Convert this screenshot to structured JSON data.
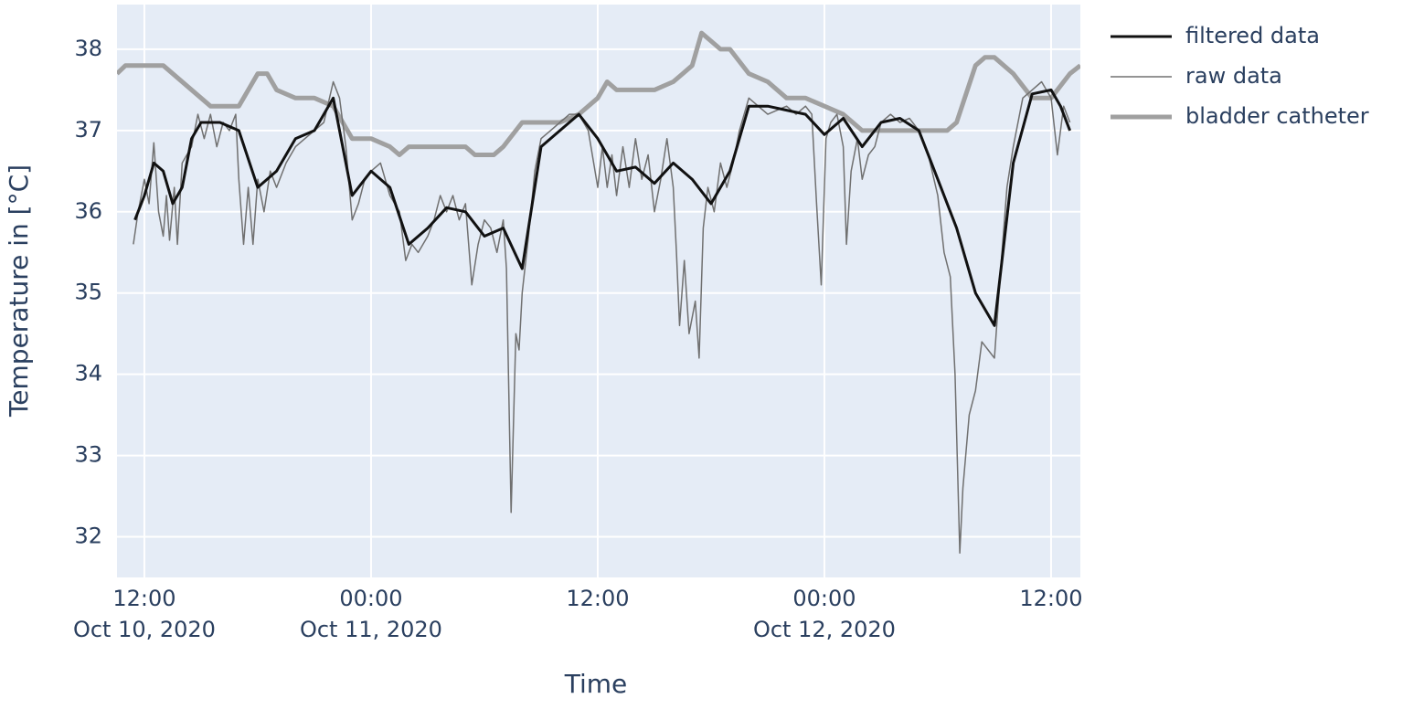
{
  "chart_data": {
    "type": "line",
    "xlabel": "Time",
    "ylabel": "Temperature in [°C]",
    "xlim": [
      "2020-10-10 10:33",
      "2020-10-12 13:33"
    ],
    "xticks": [
      {
        "value": "2020-10-10 12:00",
        "label": [
          "12:00",
          "Oct 10, 2020"
        ]
      },
      {
        "value": "2020-10-11 00:00",
        "label": [
          "00:00",
          "Oct 11, 2020"
        ]
      },
      {
        "value": "2020-10-11 12:00",
        "label": [
          "12:00"
        ]
      },
      {
        "value": "2020-10-12 00:00",
        "label": [
          "00:00",
          "Oct 12, 2020"
        ]
      },
      {
        "value": "2020-10-12 12:00",
        "label": [
          "12:00"
        ]
      }
    ],
    "ylim": [
      31.5,
      38.55
    ],
    "yticks": [
      32,
      33,
      34,
      35,
      36,
      37,
      38
    ],
    "grid": true,
    "legend": "outside-right",
    "series": [
      {
        "name": "filtered data",
        "color": "#111111",
        "width": 3,
        "x": [
          "2020-10-10 11:30",
          "2020-10-10 12:00",
          "2020-10-10 12:30",
          "2020-10-10 13:00",
          "2020-10-10 13:30",
          "2020-10-10 14:00",
          "2020-10-10 14:30",
          "2020-10-10 15:00",
          "2020-10-10 16:00",
          "2020-10-10 17:00",
          "2020-10-10 18:00",
          "2020-10-10 19:00",
          "2020-10-10 20:00",
          "2020-10-10 21:00",
          "2020-10-10 22:00",
          "2020-10-10 23:00",
          "2020-10-11 00:00",
          "2020-10-11 01:00",
          "2020-10-11 02:00",
          "2020-10-11 03:00",
          "2020-10-11 04:00",
          "2020-10-11 05:00",
          "2020-10-11 06:00",
          "2020-10-11 07:00",
          "2020-10-11 08:00",
          "2020-10-11 09:00",
          "2020-10-11 10:00",
          "2020-10-11 11:00",
          "2020-10-11 12:00",
          "2020-10-11 13:00",
          "2020-10-11 14:00",
          "2020-10-11 15:00",
          "2020-10-11 16:00",
          "2020-10-11 17:00",
          "2020-10-11 18:00",
          "2020-10-11 19:00",
          "2020-10-11 20:00",
          "2020-10-11 21:00",
          "2020-10-11 22:00",
          "2020-10-11 23:00",
          "2020-10-12 00:00",
          "2020-10-12 01:00",
          "2020-10-12 02:00",
          "2020-10-12 03:00",
          "2020-10-12 04:00",
          "2020-10-12 05:00",
          "2020-10-12 06:00",
          "2020-10-12 07:00",
          "2020-10-12 08:00",
          "2020-10-12 09:00",
          "2020-10-12 10:00",
          "2020-10-12 11:00",
          "2020-10-12 12:00",
          "2020-10-12 12:30",
          "2020-10-12 13:00"
        ],
        "values": [
          35.9,
          36.2,
          36.6,
          36.5,
          36.1,
          36.3,
          36.9,
          37.1,
          37.1,
          37.0,
          36.3,
          36.5,
          36.9,
          37.0,
          37.4,
          36.2,
          36.5,
          36.3,
          35.6,
          35.8,
          36.05,
          36.0,
          35.7,
          35.8,
          35.3,
          36.8,
          37.0,
          37.2,
          36.9,
          36.5,
          36.55,
          36.35,
          36.6,
          36.4,
          36.1,
          36.5,
          37.3,
          37.3,
          37.25,
          37.2,
          36.95,
          37.15,
          36.8,
          37.1,
          37.15,
          37.0,
          36.4,
          35.8,
          35.0,
          34.6,
          36.6,
          37.45,
          37.5,
          37.3,
          37.0
        ]
      },
      {
        "name": "raw data",
        "color": "#707070",
        "width": 1.5,
        "x": [
          "2020-10-10 11:25",
          "2020-10-10 11:40",
          "2020-10-10 12:00",
          "2020-10-10 12:15",
          "2020-10-10 12:30",
          "2020-10-10 12:45",
          "2020-10-10 13:00",
          "2020-10-10 13:10",
          "2020-10-10 13:20",
          "2020-10-10 13:35",
          "2020-10-10 13:45",
          "2020-10-10 14:00",
          "2020-10-10 14:30",
          "2020-10-10 14:50",
          "2020-10-10 15:10",
          "2020-10-10 15:30",
          "2020-10-10 15:50",
          "2020-10-10 16:10",
          "2020-10-10 16:30",
          "2020-10-10 16:50",
          "2020-10-10 17:00",
          "2020-10-10 17:15",
          "2020-10-10 17:30",
          "2020-10-10 17:45",
          "2020-10-10 18:00",
          "2020-10-10 18:20",
          "2020-10-10 18:40",
          "2020-10-10 19:00",
          "2020-10-10 19:30",
          "2020-10-10 20:00",
          "2020-10-10 20:30",
          "2020-10-10 21:00",
          "2020-10-10 21:30",
          "2020-10-10 22:00",
          "2020-10-10 22:20",
          "2020-10-10 22:40",
          "2020-10-10 23:00",
          "2020-10-10 23:20",
          "2020-10-10 23:40",
          "2020-10-11 00:00",
          "2020-10-11 00:30",
          "2020-10-11 01:00",
          "2020-10-11 01:30",
          "2020-10-11 01:50",
          "2020-10-11 02:10",
          "2020-10-11 02:30",
          "2020-10-11 03:00",
          "2020-10-11 03:20",
          "2020-10-11 03:40",
          "2020-10-11 04:00",
          "2020-10-11 04:20",
          "2020-10-11 04:40",
          "2020-10-11 05:00",
          "2020-10-11 05:20",
          "2020-10-11 05:40",
          "2020-10-11 06:00",
          "2020-10-11 06:20",
          "2020-10-11 06:40",
          "2020-10-11 07:00",
          "2020-10-11 07:10",
          "2020-10-11 07:25",
          "2020-10-11 07:40",
          "2020-10-11 07:50",
          "2020-10-11 08:00",
          "2020-10-11 08:20",
          "2020-10-11 08:40",
          "2020-10-11 09:00",
          "2020-10-11 09:30",
          "2020-10-11 10:00",
          "2020-10-11 10:30",
          "2020-10-11 11:00",
          "2020-10-11 11:30",
          "2020-10-11 12:00",
          "2020-10-11 12:15",
          "2020-10-11 12:30",
          "2020-10-11 12:45",
          "2020-10-11 13:00",
          "2020-10-11 13:20",
          "2020-10-11 13:40",
          "2020-10-11 14:00",
          "2020-10-11 14:20",
          "2020-10-11 14:40",
          "2020-10-11 15:00",
          "2020-10-11 15:20",
          "2020-10-11 15:40",
          "2020-10-11 16:00",
          "2020-10-11 16:10",
          "2020-10-11 16:20",
          "2020-10-11 16:35",
          "2020-10-11 16:50",
          "2020-10-11 17:10",
          "2020-10-11 17:22",
          "2020-10-11 17:35",
          "2020-10-11 17:50",
          "2020-10-11 18:10",
          "2020-10-11 18:30",
          "2020-10-11 18:50",
          "2020-10-11 19:10",
          "2020-10-11 19:30",
          "2020-10-11 20:00",
          "2020-10-11 20:30",
          "2020-10-11 21:00",
          "2020-10-11 21:30",
          "2020-10-11 22:00",
          "2020-10-11 22:30",
          "2020-10-11 23:00",
          "2020-10-11 23:20",
          "2020-10-11 23:35",
          "2020-10-11 23:50",
          "2020-10-12 00:05",
          "2020-10-12 00:20",
          "2020-10-12 00:40",
          "2020-10-12 01:00",
          "2020-10-12 01:10",
          "2020-10-12 01:25",
          "2020-10-12 01:45",
          "2020-10-12 02:00",
          "2020-10-12 02:20",
          "2020-10-12 02:40",
          "2020-10-12 03:00",
          "2020-10-12 03:30",
          "2020-10-12 04:00",
          "2020-10-12 04:30",
          "2020-10-12 05:00",
          "2020-10-12 05:30",
          "2020-10-12 06:00",
          "2020-10-12 06:20",
          "2020-10-12 06:40",
          "2020-10-12 06:55",
          "2020-10-12 07:10",
          "2020-10-12 07:20",
          "2020-10-12 07:40",
          "2020-10-12 08:00",
          "2020-10-12 08:20",
          "2020-10-12 08:40",
          "2020-10-12 09:00",
          "2020-10-12 09:20",
          "2020-10-12 09:40",
          "2020-10-12 10:00",
          "2020-10-12 10:30",
          "2020-10-12 11:00",
          "2020-10-12 11:30",
          "2020-10-12 12:00",
          "2020-10-12 12:20",
          "2020-10-12 12:40",
          "2020-10-12 13:00"
        ],
        "values": [
          35.6,
          36.0,
          36.4,
          36.1,
          36.85,
          36.0,
          35.7,
          36.2,
          35.65,
          36.3,
          35.6,
          36.6,
          36.8,
          37.2,
          36.9,
          37.2,
          36.8,
          37.1,
          37.0,
          37.2,
          36.4,
          35.6,
          36.3,
          35.6,
          36.4,
          36.0,
          36.5,
          36.3,
          36.6,
          36.8,
          36.9,
          37.0,
          37.1,
          37.6,
          37.4,
          36.8,
          35.9,
          36.1,
          36.4,
          36.5,
          36.6,
          36.2,
          36.0,
          35.4,
          35.6,
          35.5,
          35.7,
          35.9,
          36.2,
          36.0,
          36.2,
          35.9,
          36.1,
          35.1,
          35.6,
          35.9,
          35.8,
          35.5,
          35.9,
          35.3,
          32.3,
          34.5,
          34.3,
          35.0,
          35.7,
          36.5,
          36.9,
          37.0,
          37.1,
          37.2,
          37.2,
          37.0,
          36.3,
          36.8,
          36.3,
          36.7,
          36.2,
          36.8,
          36.3,
          36.9,
          36.4,
          36.7,
          36.0,
          36.4,
          36.9,
          36.3,
          35.5,
          34.6,
          35.4,
          34.5,
          34.9,
          34.2,
          35.8,
          36.3,
          36.0,
          36.6,
          36.3,
          36.6,
          37.0,
          37.4,
          37.3,
          37.2,
          37.25,
          37.3,
          37.2,
          37.3,
          37.2,
          36.1,
          35.1,
          36.9,
          37.1,
          37.2,
          36.8,
          35.6,
          36.5,
          36.9,
          36.4,
          36.7,
          36.8,
          37.1,
          37.2,
          37.1,
          37.15,
          37.0,
          36.7,
          36.2,
          35.5,
          35.2,
          34.0,
          31.8,
          32.6,
          33.5,
          33.8,
          34.4,
          34.3,
          34.2,
          35.3,
          36.3,
          36.8,
          37.4,
          37.5,
          37.6,
          37.4,
          36.7,
          37.3,
          37.1
        ]
      },
      {
        "name": "bladder catheter",
        "color": "#a0a0a0",
        "width": 5,
        "x": [
          "2020-10-10 10:33",
          "2020-10-10 11:00",
          "2020-10-10 13:00",
          "2020-10-10 15:00",
          "2020-10-10 15:30",
          "2020-10-10 17:00",
          "2020-10-10 18:00",
          "2020-10-10 18:30",
          "2020-10-10 19:00",
          "2020-10-10 20:00",
          "2020-10-10 21:00",
          "2020-10-10 22:00",
          "2020-10-10 23:00",
          "2020-10-11 00:00",
          "2020-10-11 01:00",
          "2020-10-11 01:30",
          "2020-10-11 02:00",
          "2020-10-11 05:00",
          "2020-10-11 05:30",
          "2020-10-11 06:30",
          "2020-10-11 07:00",
          "2020-10-11 08:00",
          "2020-10-11 10:00",
          "2020-10-11 11:00",
          "2020-10-11 12:00",
          "2020-10-11 12:30",
          "2020-10-11 13:00",
          "2020-10-11 15:00",
          "2020-10-11 16:00",
          "2020-10-11 16:30",
          "2020-10-11 17:00",
          "2020-10-11 17:30",
          "2020-10-11 18:00",
          "2020-10-11 18:30",
          "2020-10-11 19:00",
          "2020-10-11 20:00",
          "2020-10-11 21:00",
          "2020-10-11 22:00",
          "2020-10-11 23:00",
          "2020-10-12 00:00",
          "2020-10-12 01:00",
          "2020-10-12 02:00",
          "2020-10-12 03:00",
          "2020-10-12 05:00",
          "2020-10-12 06:00",
          "2020-10-12 06:30",
          "2020-10-12 07:00",
          "2020-10-12 08:00",
          "2020-10-12 08:30",
          "2020-10-12 09:00",
          "2020-10-12 10:00",
          "2020-10-12 11:00",
          "2020-10-12 12:00",
          "2020-10-12 13:00",
          "2020-10-12 13:33"
        ],
        "values": [
          37.7,
          37.8,
          37.8,
          37.4,
          37.3,
          37.3,
          37.7,
          37.7,
          37.5,
          37.4,
          37.4,
          37.3,
          36.9,
          36.9,
          36.8,
          36.7,
          36.8,
          36.8,
          36.7,
          36.7,
          36.8,
          37.1,
          37.1,
          37.2,
          37.4,
          37.6,
          37.5,
          37.5,
          37.6,
          37.7,
          37.8,
          38.2,
          38.1,
          38.0,
          38.0,
          37.7,
          37.6,
          37.4,
          37.4,
          37.3,
          37.2,
          37.0,
          37.0,
          37.0,
          37.0,
          37.0,
          37.1,
          37.8,
          37.9,
          37.9,
          37.7,
          37.4,
          37.4,
          37.7,
          37.8
        ]
      }
    ]
  }
}
